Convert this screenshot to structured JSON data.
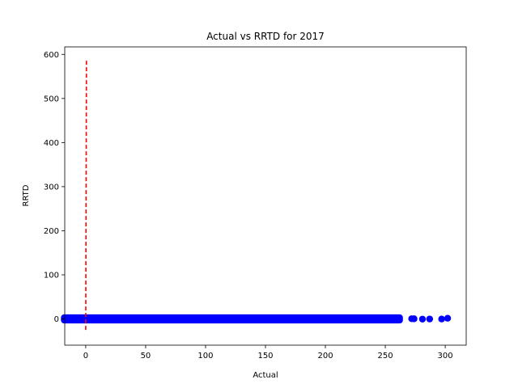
{
  "chart_data": {
    "type": "scatter",
    "title": "Actual vs RRTD for 2017",
    "xlabel": "Actual",
    "ylabel": "RRTD",
    "xlim": [
      -17.5,
      317.5
    ],
    "ylim": [
      -59.5,
      617
    ],
    "xticks": [
      0,
      50,
      100,
      150,
      200,
      250,
      300
    ],
    "yticks": [
      0,
      100,
      200,
      300,
      400,
      500,
      600
    ],
    "grid": false,
    "legend": "none",
    "colors": {
      "points": "#0000ff",
      "reference_line": "#ff0000"
    },
    "scatter_band": {
      "x_min": -18,
      "x_max": 262,
      "y_min": -3,
      "y_max": 3
    },
    "points": [
      {
        "x": 272,
        "y": 0.5
      },
      {
        "x": 274,
        "y": 0.3
      },
      {
        "x": 281,
        "y": -0.4
      },
      {
        "x": 287,
        "y": -0.2
      },
      {
        "x": 297,
        "y": -0.3
      },
      {
        "x": 302,
        "y": 1.5
      }
    ],
    "reference_line": {
      "style": "dashed",
      "points": [
        [
          0,
          -25
        ],
        [
          0.6,
          590
        ]
      ]
    }
  }
}
